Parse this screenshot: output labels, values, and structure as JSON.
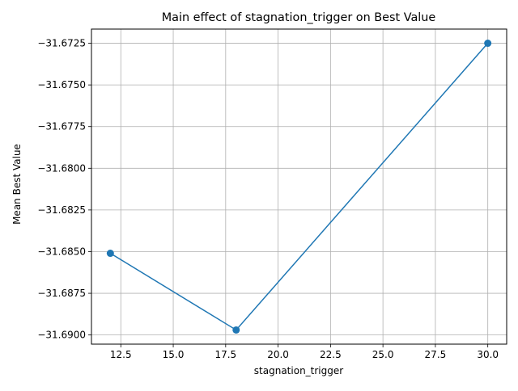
{
  "chart_data": {
    "type": "line",
    "title": "Main effect of stagnation_trigger on Best Value",
    "xlabel": "stagnation_trigger",
    "ylabel": "Mean Best Value",
    "x": [
      12,
      18,
      30
    ],
    "series": [
      {
        "values": [
          -31.6851,
          -31.6897,
          -31.6725
        ],
        "color": "#1f77b4",
        "marker": "circle"
      }
    ],
    "xlim": [
      11.1,
      30.9
    ],
    "ylim": [
      -31.69055,
      -31.67165
    ],
    "xticks": [
      12.5,
      15.0,
      17.5,
      20.0,
      22.5,
      25.0,
      27.5,
      30.0
    ],
    "xtick_labels": [
      "12.5",
      "15.0",
      "17.5",
      "20.0",
      "22.5",
      "25.0",
      "27.5",
      "30.0"
    ],
    "yticks": [
      -31.69,
      -31.6875,
      -31.685,
      -31.6825,
      -31.68,
      -31.6775,
      -31.675,
      -31.6725
    ],
    "ytick_labels": [
      "−31.6900",
      "−31.6875",
      "−31.6850",
      "−31.6825",
      "−31.6800",
      "−31.6775",
      "−31.6750",
      "−31.6725"
    ],
    "grid": true,
    "legend": false
  }
}
